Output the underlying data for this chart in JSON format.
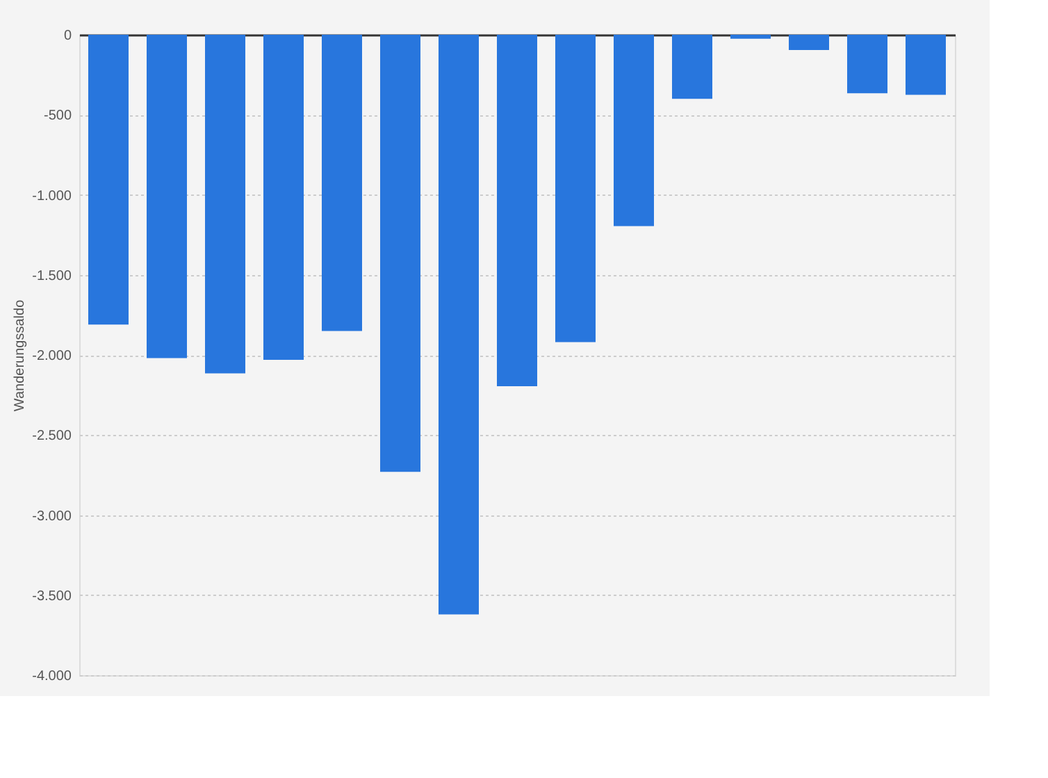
{
  "chart_data": {
    "type": "bar",
    "ylabel": "Wanderungssaldo",
    "categories": [
      null,
      null,
      null,
      null,
      null,
      null,
      null,
      null,
      null,
      null,
      null,
      null,
      null,
      null,
      null
    ],
    "values": [
      -1810,
      -2020,
      -2115,
      -2030,
      -1850,
      -2730,
      -3620,
      -2195,
      -1920,
      -1195,
      -400,
      -25,
      -95,
      -365,
      -375
    ],
    "color": "#2876dd",
    "ylim": [
      -4000,
      0
    ],
    "yticks": [
      {
        "value": -4000,
        "label": "-4.000"
      },
      {
        "value": -3500,
        "label": "-3.500"
      },
      {
        "value": -3000,
        "label": "-3.000"
      },
      {
        "value": -2500,
        "label": "-2.500"
      },
      {
        "value": -2000,
        "label": "-2.000"
      },
      {
        "value": -1500,
        "label": "-1.500"
      },
      {
        "value": -1000,
        "label": "-1.000"
      },
      -500,
      0
    ],
    "grid": "y",
    "tick_labels": "y"
  }
}
